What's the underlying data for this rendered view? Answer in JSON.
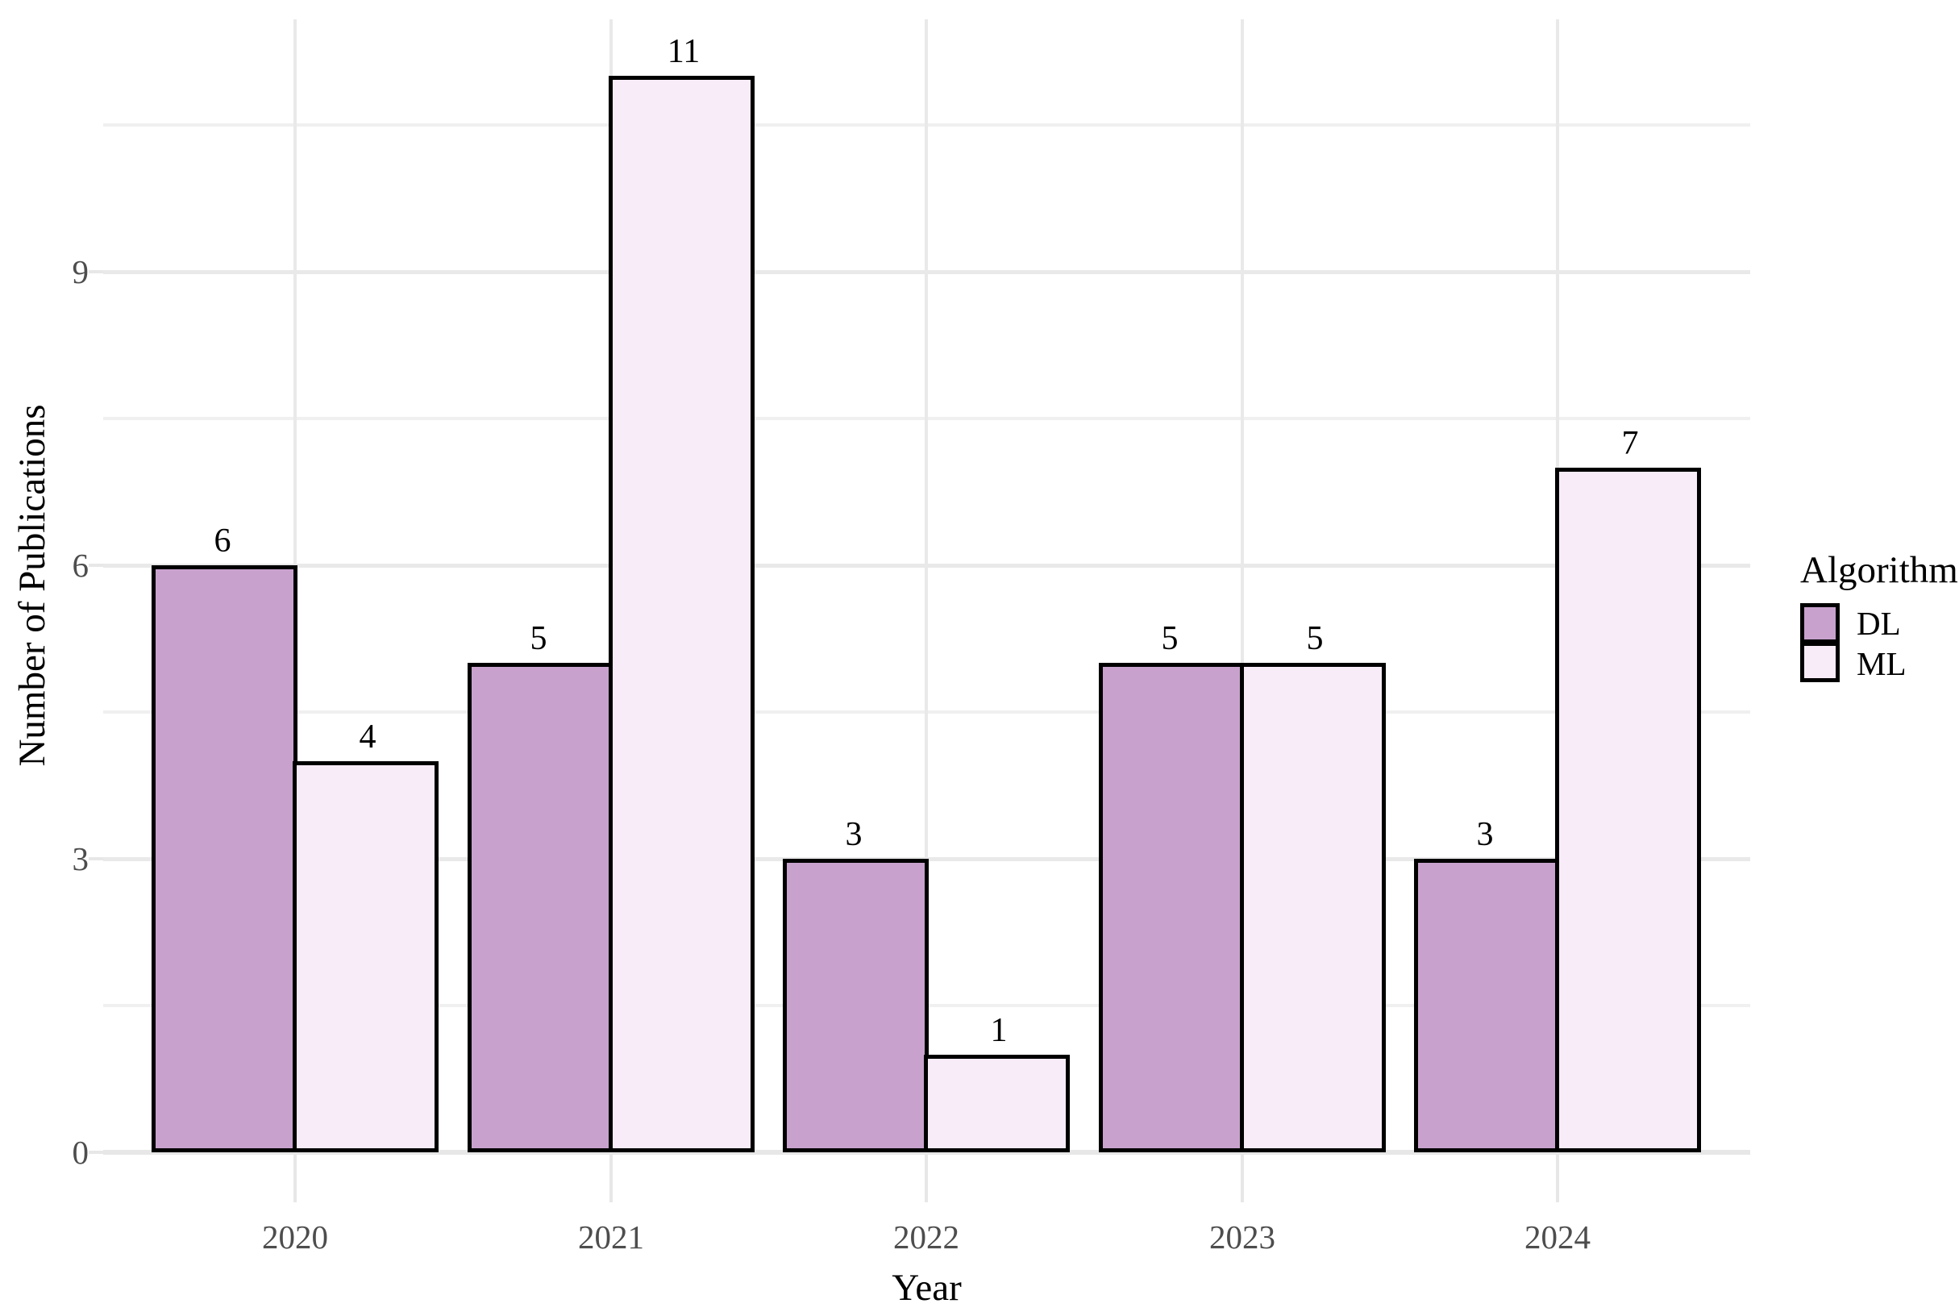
{
  "chart_data": {
    "type": "bar",
    "title": "",
    "categories": [
      "2020",
      "2021",
      "2022",
      "2023",
      "2024"
    ],
    "series": [
      {
        "name": "DL",
        "color": "#c8a2cd",
        "values": [
          6,
          5,
          3,
          5,
          3
        ]
      },
      {
        "name": "ML",
        "color": "#f7ecf8",
        "values": [
          4,
          11,
          1,
          5,
          7
        ]
      }
    ],
    "bar_labels": [
      {
        "category": "2020",
        "DL": "6",
        "ML": "4"
      },
      {
        "category": "2021",
        "DL": "5",
        "ML": "11"
      },
      {
        "category": "2022",
        "DL": "3",
        "ML": "1"
      },
      {
        "category": "2023",
        "DL": "5",
        "ML": "5"
      },
      {
        "category": "2024",
        "DL": "3",
        "ML": "7"
      }
    ],
    "xlabel": "Year",
    "ylabel": "Number of Publications",
    "y_tick_labels": [
      "0",
      "3",
      "6",
      "9"
    ],
    "y_ticks": [
      0,
      3,
      6,
      9
    ],
    "y_minor_ticks": [
      1.5,
      4.5,
      7.5,
      10.5
    ],
    "ylim": [
      0,
      11.6
    ],
    "grid": "major and minor horizontal, major vertical at category centers",
    "legend_title": "Algorithm",
    "legend_entries": [
      "DL",
      "ML"
    ],
    "legend_position": "right"
  },
  "colors": {
    "background": "#ffffff",
    "grid_major": "#e9e9e9",
    "grid_minor": "#f0f0f0",
    "axis_line": "#e7e7e7",
    "tick_label": "#4d4d4d",
    "bar_border": "#000000",
    "dl_fill": "#c8a2cd",
    "ml_fill": "#f7ecf8"
  }
}
